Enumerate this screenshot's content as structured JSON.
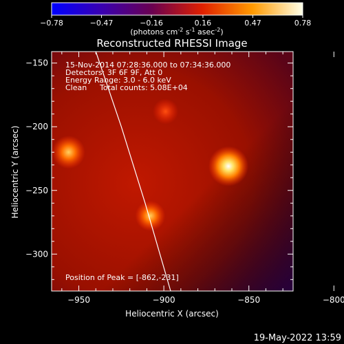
{
  "colorbar": {
    "ticks": [
      "-0.78",
      "-0.47",
      "-0.16",
      "0.16",
      "0.47",
      "0.78"
    ],
    "min": -0.78,
    "max": 0.78,
    "units_text": "(photons cm",
    "units_exp1": "-2",
    "units_mid": " s",
    "units_exp2": "-1",
    "units_mid2": " asec",
    "units_exp3": "-2",
    "units_end": ")",
    "colormap": "blue-purple-red-orange-yellow-white"
  },
  "chart_data": {
    "type": "heatmap",
    "title": "Reconstructed RHESSI Image",
    "xlabel": "Heliocentric X (arcsec)",
    "ylabel": "Heliocentric Y (arcsec)",
    "xlim": [
      -966,
      -824
    ],
    "ylim": [
      -329,
      -141
    ],
    "xticks": [
      -950,
      -900,
      -850,
      -800
    ],
    "yticks": [
      -150,
      -200,
      -250,
      -300
    ],
    "xtick_labels": [
      "−950",
      "−900",
      "−850",
      "−800"
    ],
    "ytick_labels": [
      "−150",
      "−200",
      "−250",
      "−300"
    ],
    "sources": [
      {
        "x": -862,
        "y": -231,
        "peak": 0.78
      },
      {
        "x": -956,
        "y": -220,
        "peak": 0.55
      },
      {
        "x": -908,
        "y": -270,
        "peak": 0.45
      },
      {
        "x": -899,
        "y": -188,
        "peak": 0.3
      }
    ],
    "limb_curve": [
      [
        -940,
        -141
      ],
      [
        -925,
        -200
      ],
      [
        -911,
        -260
      ],
      [
        -896,
        -329
      ]
    ],
    "annotations": {
      "time": "15-Nov-2014 07:28:36.000 to 07:34:36.000",
      "detectors": "Detectors: 3F 6F 9F, Att 0",
      "energy": "Energy Range: 3.0 - 6.0 keV",
      "method": "Clean",
      "counts": "Total counts: 5.08E+04",
      "peak": "Position of Peak = [-862,-231]"
    }
  },
  "footer": {
    "date": "19-May-2022 13:59"
  }
}
